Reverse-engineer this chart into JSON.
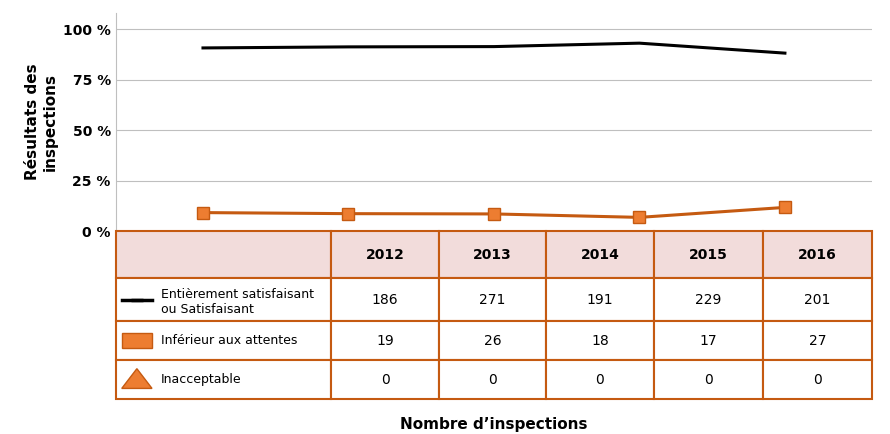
{
  "years": [
    2012,
    2013,
    2014,
    2015,
    2016
  ],
  "satisfaisant_counts": [
    186,
    271,
    191,
    229,
    201
  ],
  "inferieur_counts": [
    19,
    26,
    18,
    17,
    27
  ],
  "inacceptable_counts": [
    0,
    0,
    0,
    0,
    0
  ],
  "satisfaisant_pct": [
    90.73,
    91.25,
    91.39,
    93.09,
    88.16
  ],
  "inferieur_pct": [
    9.27,
    8.75,
    8.61,
    6.91,
    11.84
  ],
  "inacceptable_pct": [
    0,
    0,
    0,
    0,
    0
  ],
  "black_line_color": "#000000",
  "orange_color": "#C55A11",
  "orange_fill_color": "#ED7D31",
  "table_header_bg": "#F2DCDB",
  "table_row_bg": "#FFFFFF",
  "table_border_color": "#C55A11",
  "ylabel": "Résultats des\ninspections",
  "xlabel": "Nombre d’inspections",
  "yticks": [
    0,
    25,
    50,
    75,
    100
  ],
  "ytick_labels": [
    "0 %",
    "25 %",
    "50 %",
    "75 %",
    "100 %"
  ],
  "legend_satisfaisant": "Entièrement satisfaisant\nou Satisfaisant",
  "legend_inferieur": "Inférieur aux attentes",
  "legend_inacceptable": "Inacceptable",
  "grid_color": "#BFBFBF",
  "spine_color": "#BFBFBF"
}
